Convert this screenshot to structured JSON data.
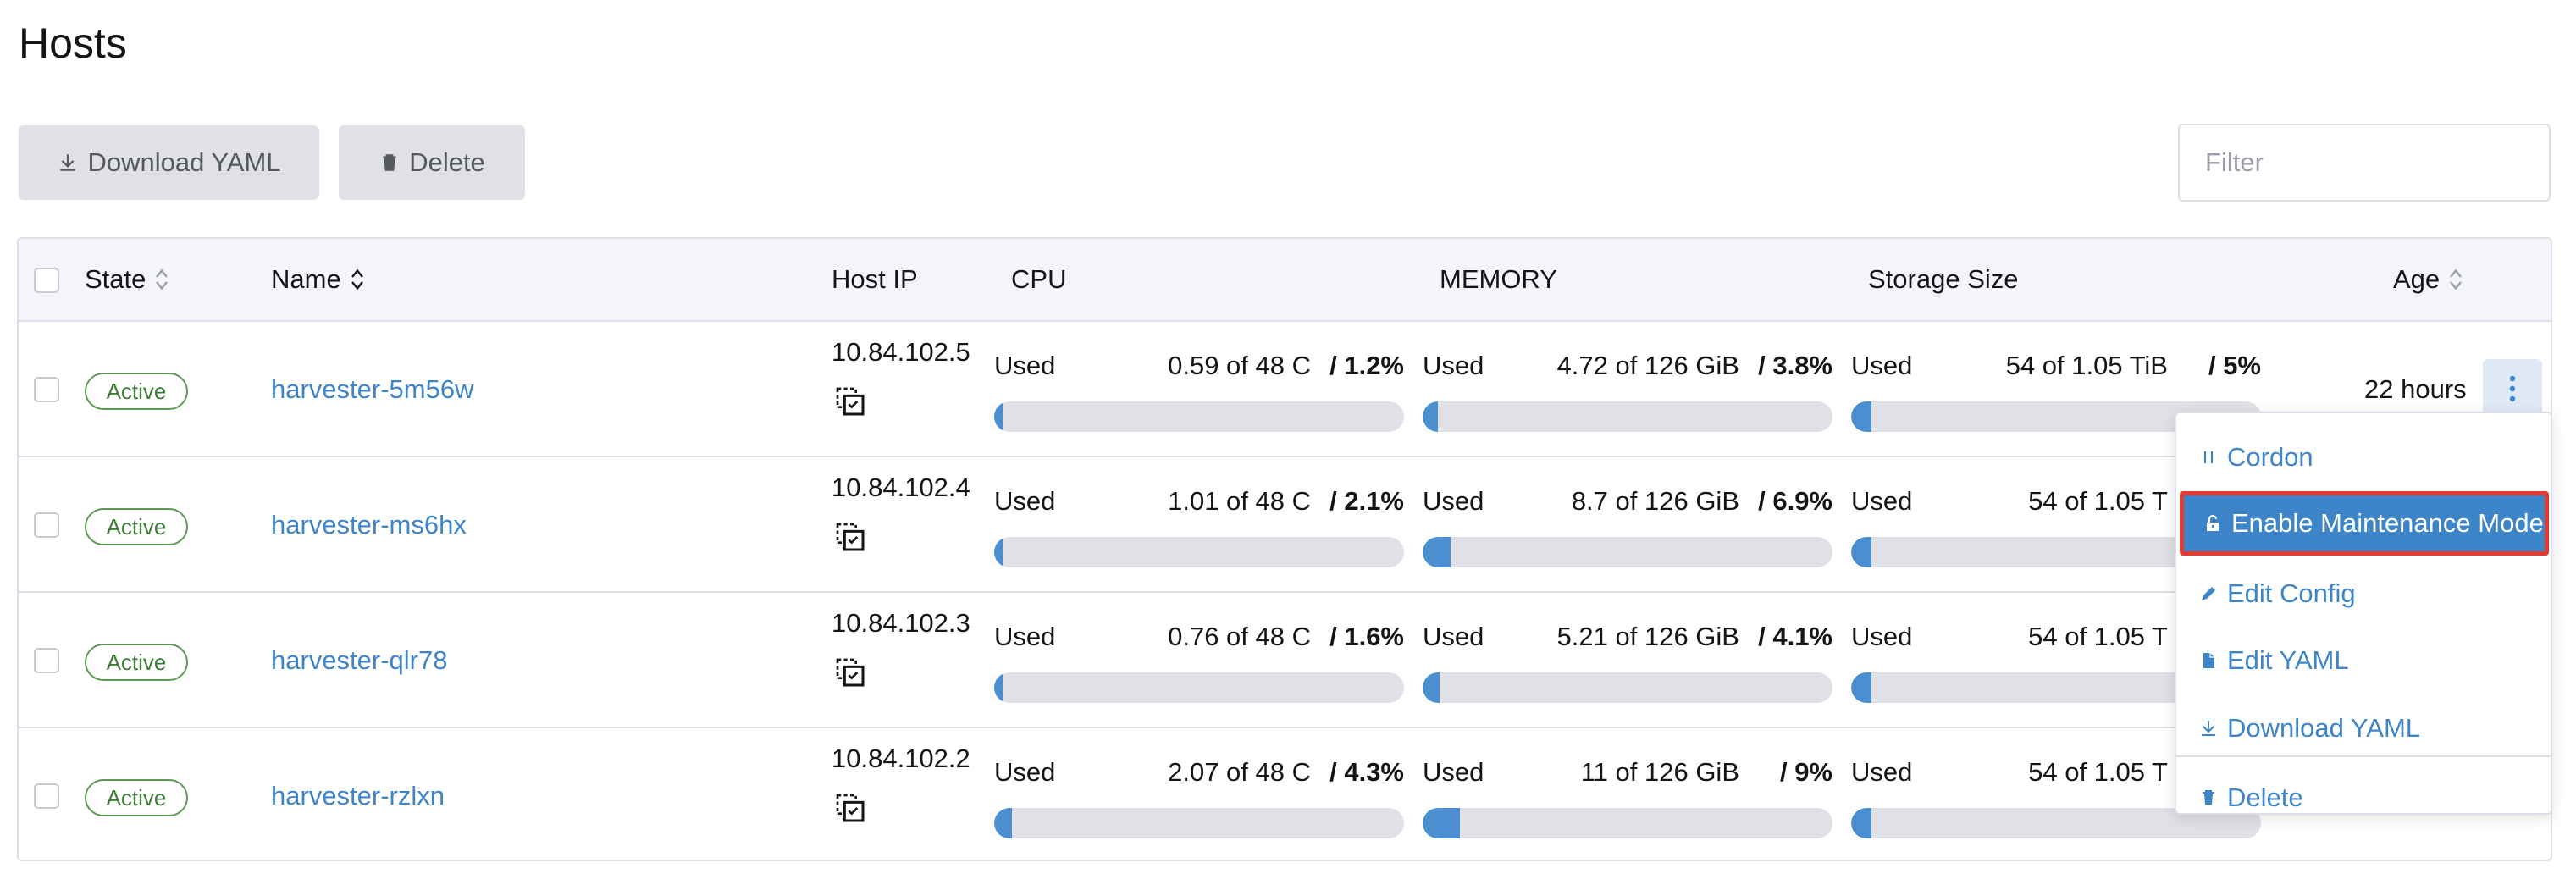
{
  "page": {
    "title": "Hosts"
  },
  "toolbar": {
    "download_yaml_label": "Download YAML",
    "delete_label": "Delete"
  },
  "filter": {
    "placeholder": "Filter"
  },
  "table": {
    "headers": {
      "state": "State",
      "name": "Name",
      "host_ip": "Host IP",
      "cpu": "CPU",
      "memory": "MEMORY",
      "storage": "Storage Size",
      "age": "Age"
    },
    "rows": [
      {
        "state": "Active",
        "name": "harvester-5m56w",
        "ip": "10.84.102.5",
        "cpu": {
          "label": "Used",
          "amount": "0.59 of 48 C",
          "pct": "/ 1.2%",
          "fraction": 0.012
        },
        "memory": {
          "label": "Used",
          "amount": "4.72 of 126 GiB",
          "pct": "/ 3.8%",
          "fraction": 0.038
        },
        "storage": {
          "label": "Used",
          "amount": "54 of 1.05 TiB",
          "pct": "/ 5%",
          "fraction": 0.05
        },
        "age": "22 hours"
      },
      {
        "state": "Active",
        "name": "harvester-ms6hx",
        "ip": "10.84.102.4",
        "cpu": {
          "label": "Used",
          "amount": "1.01 of 48 C",
          "pct": "/ 2.1%",
          "fraction": 0.021
        },
        "memory": {
          "label": "Used",
          "amount": "8.7 of 126 GiB",
          "pct": "/ 6.9%",
          "fraction": 0.069
        },
        "storage": {
          "label": "Used",
          "amount": "54 of 1.05 T",
          "pct": "",
          "fraction": 0.05
        },
        "age": ""
      },
      {
        "state": "Active",
        "name": "harvester-qlr78",
        "ip": "10.84.102.3",
        "cpu": {
          "label": "Used",
          "amount": "0.76 of 48 C",
          "pct": "/ 1.6%",
          "fraction": 0.016
        },
        "memory": {
          "label": "Used",
          "amount": "5.21 of 126 GiB",
          "pct": "/ 4.1%",
          "fraction": 0.041
        },
        "storage": {
          "label": "Used",
          "amount": "54 of 1.05 T",
          "pct": "",
          "fraction": 0.05
        },
        "age": ""
      },
      {
        "state": "Active",
        "name": "harvester-rzlxn",
        "ip": "10.84.102.2",
        "cpu": {
          "label": "Used",
          "amount": "2.07 of 48 C",
          "pct": "/ 4.3%",
          "fraction": 0.043
        },
        "memory": {
          "label": "Used",
          "amount": "11 of 126 GiB",
          "pct": "/ 9%",
          "fraction": 0.09
        },
        "storage": {
          "label": "Used",
          "amount": "54 of 1.05 T",
          "pct": "",
          "fraction": 0.05
        },
        "age": ""
      }
    ]
  },
  "context_menu": {
    "items": [
      {
        "label": "Cordon",
        "icon": "pause-icon"
      },
      {
        "label": "Enable Maintenance Mode",
        "icon": "unlock-icon",
        "highlighted": true
      },
      {
        "label": "Edit Config",
        "icon": "pencil-icon"
      },
      {
        "label": "Edit YAML",
        "icon": "file-icon"
      },
      {
        "label": "Download YAML",
        "icon": "download-icon"
      },
      {
        "label": "Delete",
        "icon": "trash-icon"
      }
    ]
  },
  "colors": {
    "link": "#3d84c8",
    "active_badge": "#5d9a56",
    "bar_fill": "#4b8fd0",
    "bar_track": "#dfe1e7",
    "highlight_border": "#e03c31"
  }
}
